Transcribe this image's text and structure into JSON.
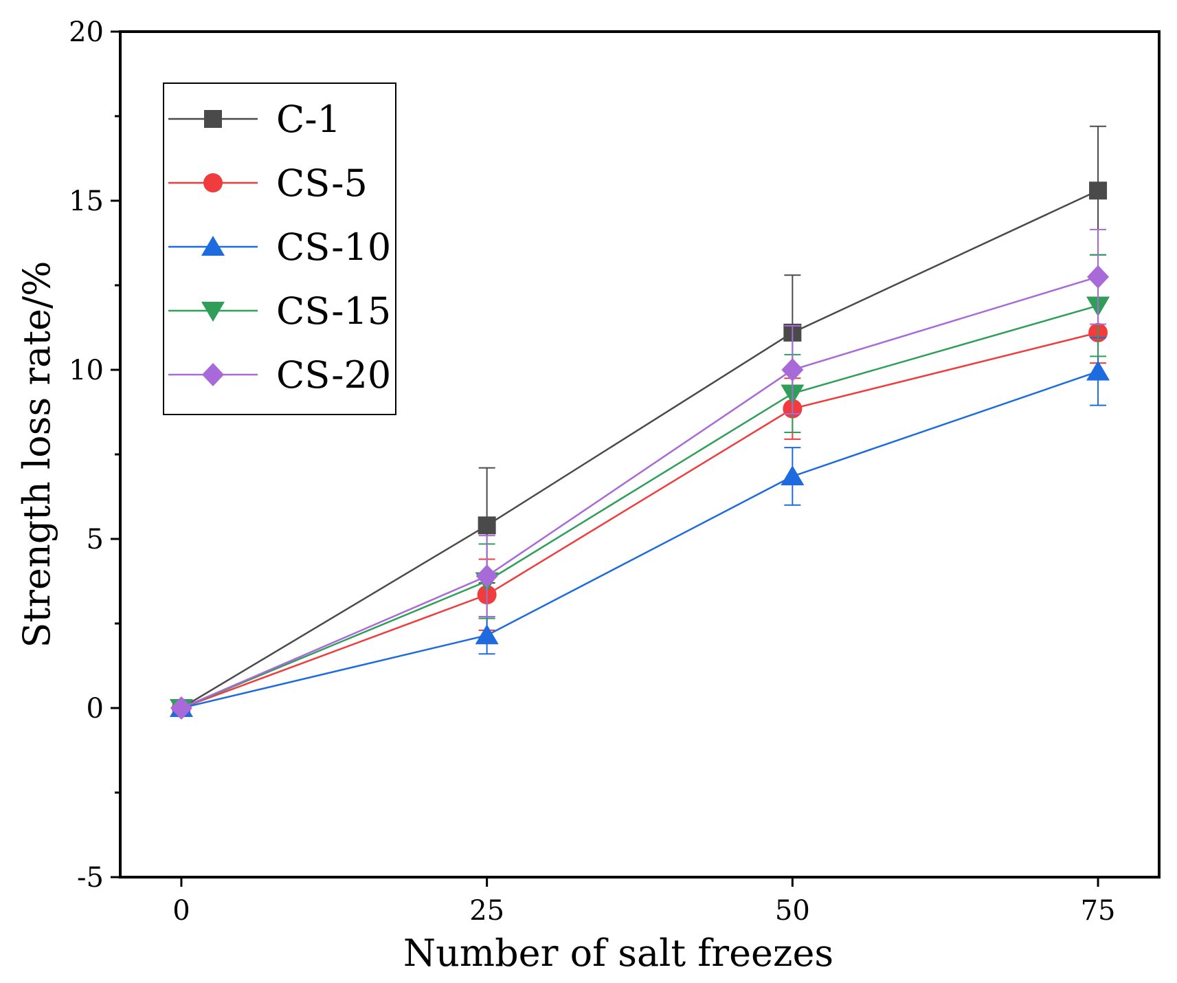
{
  "chart_data": {
    "type": "line",
    "title": "",
    "xlabel": "Number of salt freezes",
    "ylabel": "Strength loss rate/%",
    "x": [
      0,
      25,
      50,
      75
    ],
    "x_tick_labels": [
      "0",
      "25",
      "50",
      "75"
    ],
    "xlim": [
      -5,
      80
    ],
    "ylim": [
      -5,
      20
    ],
    "y_ticks": [
      -5,
      0,
      5,
      10,
      15,
      20
    ],
    "y_tick_labels": [
      "-5",
      "0",
      "5",
      "10",
      "15",
      "20"
    ],
    "legend_position": "top-left",
    "series": [
      {
        "name": "C-1",
        "color": "#4a4a4a",
        "marker": "square",
        "values": [
          0,
          5.4,
          11.1,
          15.3
        ],
        "errors": [
          0,
          1.7,
          1.7,
          1.9
        ]
      },
      {
        "name": "CS-5",
        "color": "#f03c3c",
        "marker": "circle",
        "values": [
          0,
          3.35,
          8.85,
          11.1
        ],
        "errors": [
          0,
          1.05,
          0.9,
          0.9
        ]
      },
      {
        "name": "CS-10",
        "color": "#1e6be0",
        "marker": "triangle-up",
        "values": [
          0,
          2.15,
          6.85,
          9.95
        ],
        "errors": [
          0,
          0.55,
          0.85,
          1.0
        ]
      },
      {
        "name": "CS-15",
        "color": "#2e9e58",
        "marker": "triangle-down",
        "values": [
          0,
          3.75,
          9.3,
          11.9
        ],
        "errors": [
          0,
          1.1,
          1.15,
          1.5
        ]
      },
      {
        "name": "CS-20",
        "color": "#a86ad8",
        "marker": "diamond",
        "values": [
          0,
          3.9,
          10.0,
          12.75
        ],
        "errors": [
          0,
          1.2,
          1.3,
          1.4
        ]
      }
    ]
  }
}
